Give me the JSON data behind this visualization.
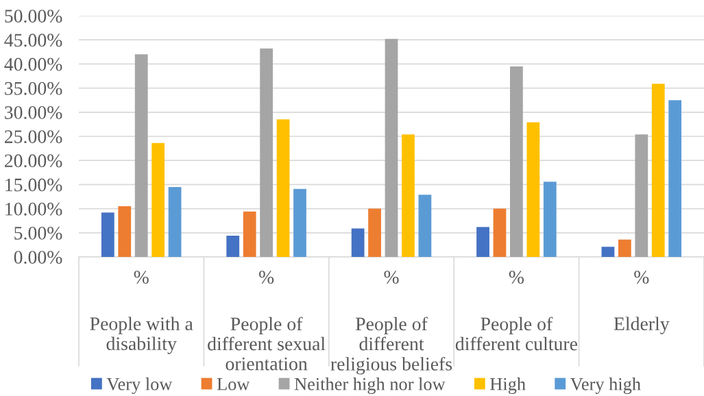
{
  "chart_data": {
    "type": "bar",
    "categories": [
      "%\nPeople with a\ndisability",
      "%\nPeople of\ndifferent sexual\norientation",
      "%\nPeople of\ndifferent\nreligious beliefs",
      "%\nPeople of\ndifferent culture",
      "%\nElderly"
    ],
    "series": [
      {
        "name": "Very low",
        "color": "#4472c4",
        "values": [
          9.2,
          4.4,
          5.9,
          6.2,
          2.1
        ]
      },
      {
        "name": "Low",
        "color": "#ed7d31",
        "values": [
          10.5,
          9.4,
          10.0,
          10.0,
          3.6
        ]
      },
      {
        "name": "Neither high nor low",
        "color": "#a5a5a5",
        "values": [
          42.0,
          43.2,
          45.2,
          39.5,
          25.4
        ]
      },
      {
        "name": "High",
        "color": "#ffc000",
        "values": [
          23.6,
          28.5,
          25.4,
          27.9,
          35.9
        ]
      },
      {
        "name": "Very high",
        "color": "#5b9bd5",
        "values": [
          14.5,
          14.1,
          12.9,
          15.6,
          32.5
        ]
      }
    ],
    "ylim": [
      0,
      50
    ],
    "yticks": [
      {
        "value": 0,
        "label": "0.00%"
      },
      {
        "value": 5,
        "label": "5.00%"
      },
      {
        "value": 10,
        "label": "10.00%"
      },
      {
        "value": 15,
        "label": "15.00%"
      },
      {
        "value": 20,
        "label": "20.00%"
      },
      {
        "value": 25,
        "label": "25.00%"
      },
      {
        "value": 30,
        "label": "30.00%"
      },
      {
        "value": 35,
        "label": "35.00%"
      },
      {
        "value": 40,
        "label": "40.00%"
      },
      {
        "value": 45,
        "label": "45.00%"
      },
      {
        "value": 50,
        "label": "50.00%"
      }
    ],
    "grid": "y",
    "legend": "bottom"
  }
}
